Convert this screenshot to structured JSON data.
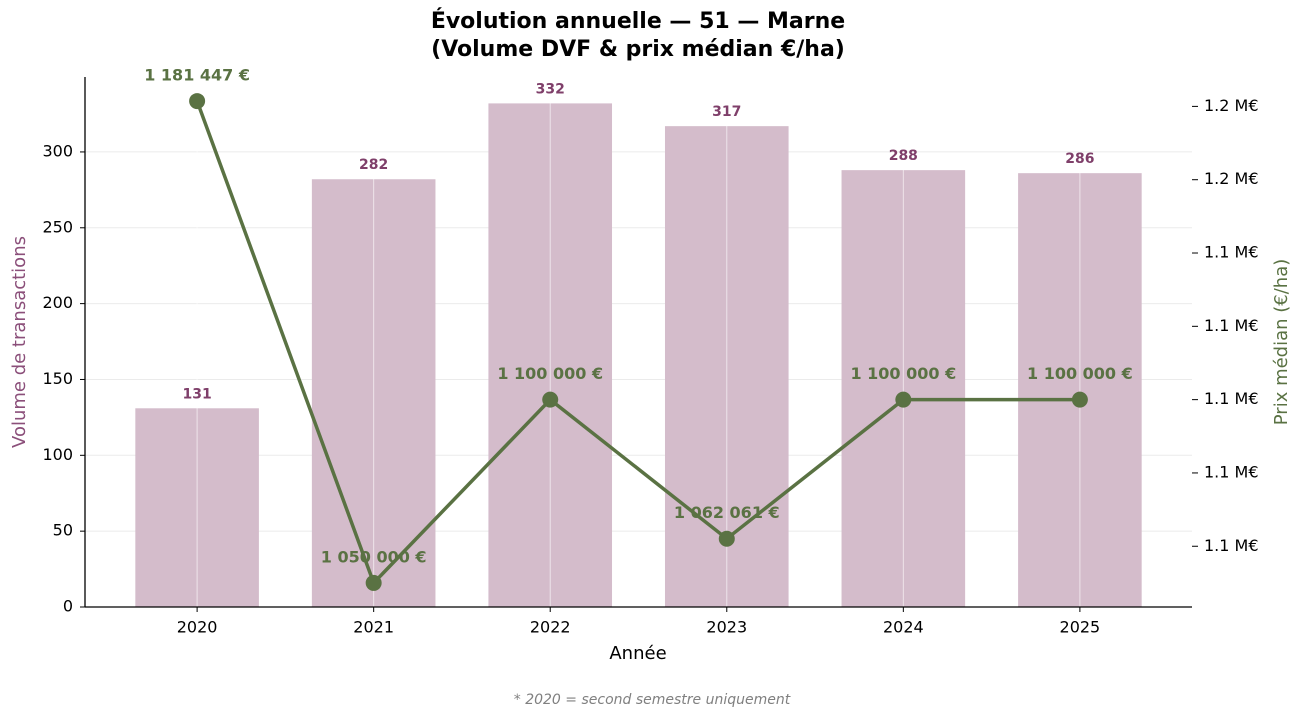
{
  "chart_data": {
    "type": "bar_line",
    "title": "Évolution annuelle — 51 — Marne",
    "subtitle": "(Volume DVF & prix médian €/ha)",
    "x_label": "Année",
    "y_label": "Volume de transactions",
    "y2_label": "Prix médian (€/ha)",
    "note": "* 2020 = second semestre uniquement",
    "categories": [
      "2020",
      "2021",
      "2022",
      "2023",
      "2024",
      "2025"
    ],
    "series": [
      {
        "type": "bar",
        "color": "#d4bccb",
        "label_color": "#7f3f6a",
        "values": [
          131,
          282,
          332,
          317,
          288,
          286
        ]
      },
      {
        "type": "line",
        "axis": "y2",
        "color": "#5a7243",
        "values": [
          1181447,
          1050000,
          1100000,
          1062061,
          1100000,
          1100000
        ],
        "value_labels": [
          "1 181 447 €",
          "1 050 000 €",
          "1 100 000 €",
          "1 062 061 €",
          "1 100 000 €",
          "1 100 000 €"
        ]
      }
    ],
    "ylim": [
      0,
      349.4
    ],
    "yticks": [
      0,
      50,
      100,
      150,
      200,
      250,
      300
    ],
    "y2lim": [
      1043428,
      1188019
    ],
    "y2ticks": [
      {
        "value": 1060000,
        "label": "1.1 M€"
      },
      {
        "value": 1080000,
        "label": "1.1 M€"
      },
      {
        "value": 1100000,
        "label": "1.1 M€"
      },
      {
        "value": 1120000,
        "label": "1.1 M€"
      },
      {
        "value": 1140000,
        "label": "1.1 M€"
      },
      {
        "value": 1160000,
        "label": "1.2 M€"
      },
      {
        "value": 1180000,
        "label": "1.2 M€"
      }
    ],
    "y_label_color": "#8b4f7a",
    "y2_label_color": "#5a7243",
    "grid": true
  }
}
